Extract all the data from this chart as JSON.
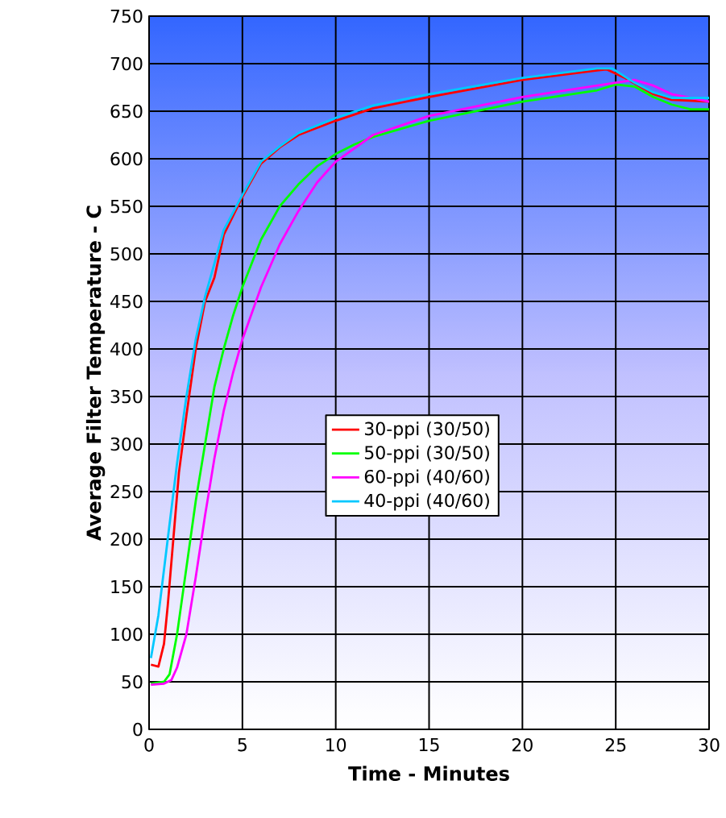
{
  "chart_data": {
    "type": "line",
    "xlabel": "Time - Minutes",
    "ylabel": "Average Filter Temperature - C",
    "xlim": [
      0,
      30
    ],
    "ylim": [
      0,
      750
    ],
    "xticks": [
      0,
      5,
      10,
      15,
      20,
      25,
      30
    ],
    "yticks": [
      0,
      50,
      100,
      150,
      200,
      250,
      300,
      350,
      400,
      450,
      500,
      550,
      600,
      650,
      700,
      750
    ],
    "grid": true,
    "legend": "center",
    "line_style": "solid",
    "marker": "none",
    "series": [
      {
        "name": "30-ppi (30/50)",
        "color": "#ff0000",
        "x": [
          0.1,
          0.5,
          0.8,
          1.0,
          1.3,
          1.6,
          2.0,
          2.5,
          3,
          3.5,
          4,
          5,
          6,
          7,
          8,
          10,
          12,
          15,
          20,
          24,
          24.5,
          25.5,
          27,
          28,
          30
        ],
        "values": [
          68,
          66,
          90,
          130,
          200,
          270,
          330,
          400,
          450,
          475,
          520,
          560,
          595,
          612,
          625,
          640,
          653,
          665,
          683,
          693,
          694,
          685,
          668,
          662,
          660
        ]
      },
      {
        "name": "50-ppi (30/50)",
        "color": "#00ff00",
        "x": [
          0.1,
          0.8,
          1.1,
          1.5,
          2,
          2.5,
          3,
          3.5,
          4,
          4.5,
          5,
          6,
          7,
          8,
          9,
          10,
          11,
          12,
          15,
          20,
          24,
          25,
          26,
          27,
          28,
          29,
          30
        ],
        "values": [
          48,
          50,
          58,
          100,
          170,
          240,
          300,
          360,
          400,
          435,
          465,
          515,
          550,
          573,
          592,
          605,
          615,
          623,
          640,
          660,
          672,
          678,
          676,
          665,
          657,
          652,
          652
        ]
      },
      {
        "name": "60-ppi (40/60)",
        "color": "#ff00ff",
        "x": [
          0.1,
          0.8,
          1.2,
          1.5,
          2,
          2.5,
          3,
          3.5,
          4,
          4.5,
          5,
          6,
          7,
          8,
          9,
          10,
          12,
          15,
          20,
          25,
          26,
          27,
          28,
          29,
          30
        ],
        "values": [
          47,
          48,
          52,
          65,
          100,
          160,
          225,
          285,
          335,
          375,
          410,
          465,
          510,
          545,
          575,
          597,
          625,
          645,
          665,
          680,
          683,
          677,
          668,
          664,
          660
        ]
      },
      {
        "name": "40-ppi (40/60)",
        "color": "#00c8ff",
        "x": [
          0.1,
          0.5,
          1.0,
          1.5,
          2,
          2.5,
          3,
          3.5,
          4,
          5,
          6,
          7,
          8,
          10,
          12,
          15,
          20,
          24,
          24.8,
          26,
          27,
          28,
          30
        ],
        "values": [
          75,
          120,
          200,
          280,
          350,
          410,
          455,
          490,
          525,
          562,
          597,
          613,
          627,
          643,
          656,
          668,
          685,
          695,
          695,
          680,
          670,
          664,
          664
        ]
      }
    ]
  }
}
